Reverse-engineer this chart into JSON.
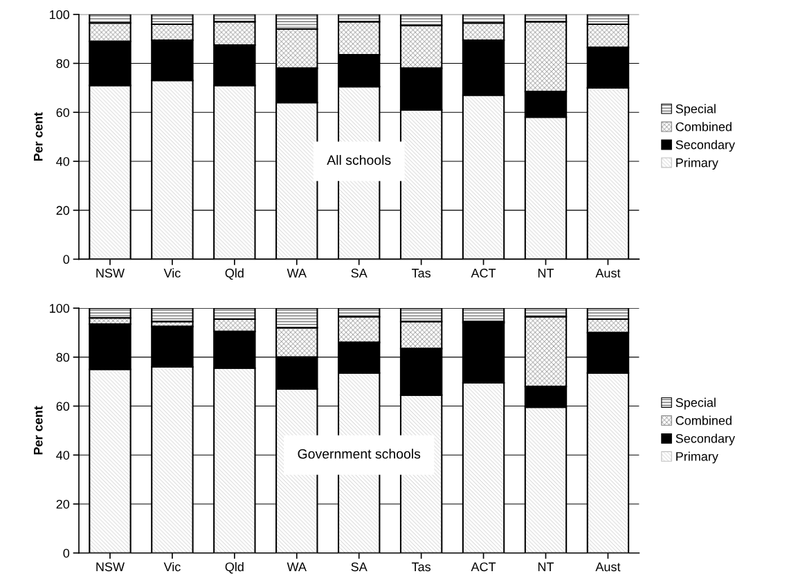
{
  "chart_data": [
    {
      "type": "bar",
      "stacked": true,
      "ylabel": "Per cent",
      "annotations": [
        "All schools"
      ],
      "categories": [
        "NSW",
        "Vic",
        "Qld",
        "WA",
        "SA",
        "Tas",
        "ACT",
        "NT",
        "Aust"
      ],
      "ylim": [
        0,
        100
      ],
      "yticks": [
        0,
        20,
        40,
        60,
        80,
        100
      ],
      "grid": "y",
      "legend": "right",
      "series": [
        {
          "name": "Primary",
          "color": "#c0c0c0",
          "values": [
            71,
            73,
            71,
            64,
            70.5,
            61,
            67,
            58,
            70
          ]
        },
        {
          "name": "Secondary",
          "color": "#000000",
          "values": [
            18,
            16.5,
            16.5,
            14,
            13,
            17,
            22.5,
            10.5,
            16.5
          ]
        },
        {
          "name": "Combined",
          "color": "#808080",
          "values": [
            7.5,
            6.5,
            9.5,
            16,
            13.5,
            17.5,
            7,
            28.5,
            9.5
          ]
        },
        {
          "name": "Special",
          "color": "#ffffff",
          "values": [
            3.5,
            4,
            3,
            6,
            3,
            4.5,
            3.5,
            3,
            4
          ]
        }
      ]
    },
    {
      "type": "bar",
      "stacked": true,
      "ylabel": "Per cent",
      "annotations": [
        "Government schools"
      ],
      "categories": [
        "NSW",
        "Vic",
        "Qld",
        "WA",
        "SA",
        "Tas",
        "ACT",
        "NT",
        "Aust"
      ],
      "ylim": [
        0,
        100
      ],
      "yticks": [
        0,
        20,
        40,
        60,
        80,
        100
      ],
      "grid": "y",
      "legend": "right",
      "series": [
        {
          "name": "Primary",
          "color": "#c0c0c0",
          "values": [
            75,
            76,
            75.5,
            67,
            73.5,
            64.5,
            69.5,
            59.5,
            73.5
          ]
        },
        {
          "name": "Secondary",
          "color": "#000000",
          "values": [
            18.5,
            16.5,
            15,
            13,
            12.5,
            19,
            24.5,
            8.5,
            16.5
          ]
        },
        {
          "name": "Combined",
          "color": "#808080",
          "values": [
            2.5,
            2,
            5,
            12,
            10.5,
            11,
            0.5,
            28.5,
            5.5
          ]
        },
        {
          "name": "Special",
          "color": "#ffffff",
          "values": [
            4,
            5.5,
            4.5,
            8,
            3.5,
            5.5,
            5.5,
            3.5,
            4.5
          ]
        }
      ]
    }
  ]
}
